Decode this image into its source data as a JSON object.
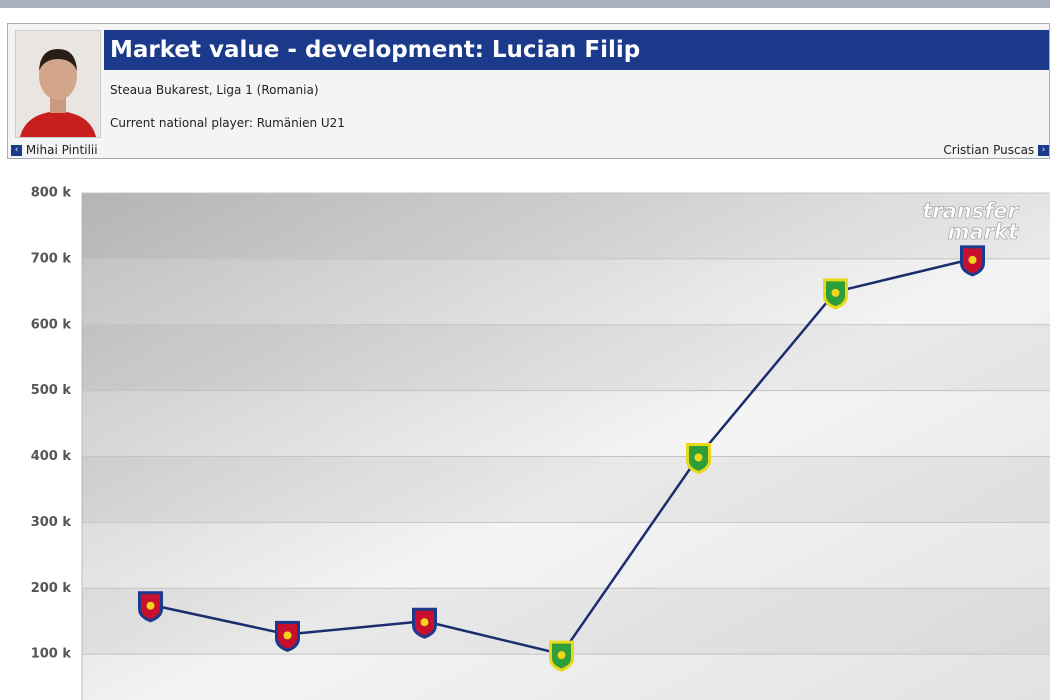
{
  "header": {
    "title": "Market value - development: Lucian Filip",
    "club_line": "Steaua Bukarest, Liga 1 (Romania)",
    "national_line": "Current national player: Rumänien U21",
    "prev_player": "Mihai Pintilii",
    "next_player": "Cristian Puscas"
  },
  "chart_data": {
    "type": "line",
    "categories": [
      null,
      null,
      null,
      null,
      null,
      null,
      null
    ],
    "values": [
      175,
      130,
      150,
      100,
      400,
      650,
      700
    ],
    "color": "#1c2d6e",
    "point_colors": [
      "#c8102e",
      "#c8102e",
      "#c8102e",
      "#2e9e3a",
      "#2e9e3a",
      "#2e9e3a",
      "#c8102e"
    ],
    "ylim": [
      0,
      800
    ],
    "yticks": [
      {
        "value": 100,
        "label": "100 k"
      },
      {
        "value": 200,
        "label": "200 k"
      },
      {
        "value": 300,
        "label": "300 k"
      },
      {
        "value": 400,
        "label": "400 k"
      },
      {
        "value": 500,
        "label": "500 k"
      },
      {
        "value": 600,
        "label": "600 k"
      },
      {
        "value": 700,
        "label": "700 k"
      },
      {
        "value": 800,
        "label": "800 k"
      }
    ],
    "grid": true,
    "watermark": [
      "transfer",
      "markt"
    ]
  }
}
